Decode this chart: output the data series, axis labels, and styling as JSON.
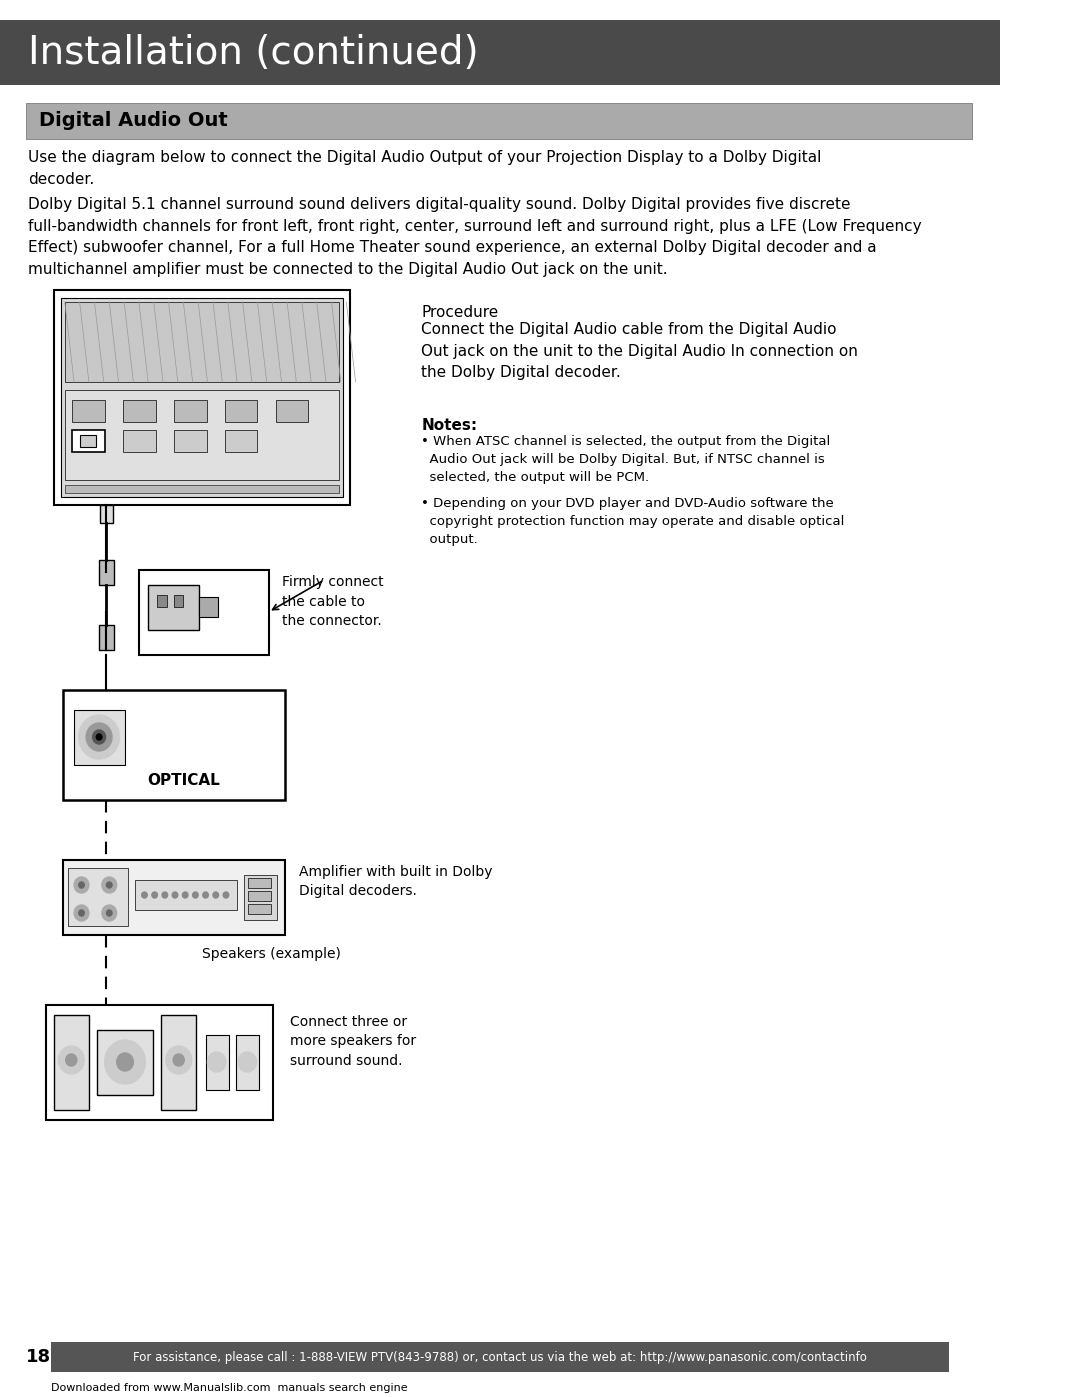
{
  "title": "Installation (continued)",
  "title_bg": "#4a4a4a",
  "title_color": "#ffffff",
  "title_fontsize": 28,
  "section_title": "Digital Audio Out",
  "section_bg": "#aaaaaa",
  "section_color": "#000000",
  "section_fontsize": 14,
  "body_text1": "Use the diagram below to connect the Digital Audio Output of your Projection Display to a Dolby Digital\ndecoder.",
  "body_text2": "Dolby Digital 5.1 channel surround sound delivers digital-quality sound. Dolby Digital provides five discrete\nfull-bandwidth channels for front left, front right, center, surround left and surround right, plus a LFE (Low Frequency\nEffect) subwoofer channel, For a full Home Theater sound experience, an external Dolby Digital decoder and a\nmultichannel amplifier must be connected to the Digital Audio Out jack on the unit.",
  "procedure_title": "Procedure",
  "procedure_text": "Connect the Digital Audio cable from the Digital Audio\nOut jack on the unit to the Digital Audio In connection on\nthe Dolby Digital decoder.",
  "notes_title": "Notes:",
  "note1": "• When ATSC channel is selected, the output from the Digital\n  Audio Out jack will be Dolby Digital. But, if NTSC channel is\n  selected, the output will be PCM.",
  "note2": "• Depending on your DVD player and DVD-Audio software the\n  copyright protection function may operate and disable optical\n  output.",
  "firmly_text": "Firmly connect\nthe cable to\nthe connector.",
  "optical_label": "OPTICAL",
  "amplifier_label": "Amplifier with built in Dolby\nDigital decoders.",
  "speakers_label": "Speakers (example)",
  "connect_text": "Connect three or\nmore speakers for\nsurround sound.",
  "footer_bg": "#555555",
  "footer_color": "#ffffff",
  "footer_text": "For assistance, please call : 1-888-VIEW PTV(843-9788) or, contact us via the web at: http://www.panasonic.com/contactinfo",
  "page_number": "18",
  "downloaded_text": "Downloaded from www.Manualslib.com  manuals search engine",
  "bg_color": "#ffffff",
  "body_fontsize": 11,
  "note_fontsize": 9.5
}
